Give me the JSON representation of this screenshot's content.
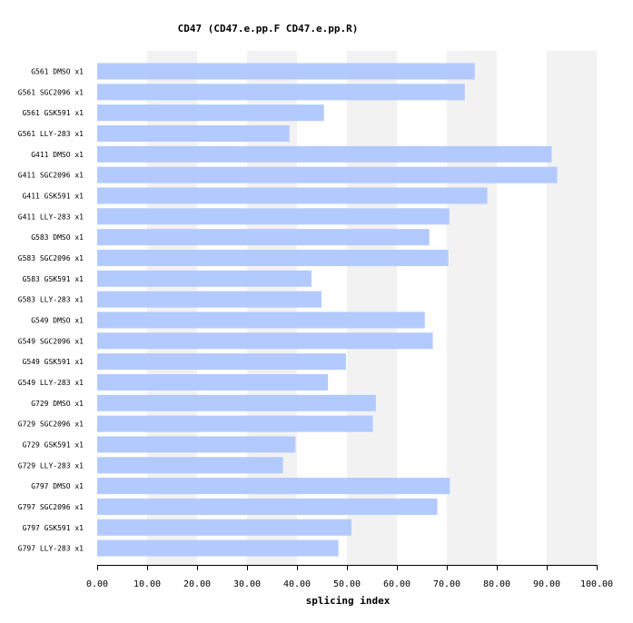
{
  "chart_data": {
    "type": "bar",
    "orientation": "horizontal",
    "title": "CD47 (CD47.e.pp.F  CD47.e.pp.R)",
    "xlabel": "splicing index",
    "ylabel": "",
    "xlim": [
      0,
      100
    ],
    "x_ticks": [
      "0.00",
      "10.00",
      "20.00",
      "30.00",
      "40.00",
      "50.00",
      "60.00",
      "70.00",
      "80.00",
      "90.00",
      "100.00"
    ],
    "grid": "alternating vertical bands",
    "categories": [
      "G561 DMSO x1",
      "G561 SGC2096 x1",
      "G561 GSK591 x1",
      "G561 LLY-283 x1",
      "G411 DMSO x1",
      "G411 SGC2096 x1",
      "G411 GSK591 x1",
      "G411 LLY-283 x1",
      "G583 DMSO x1",
      "G583 SGC2096 x1",
      "G583 GSK591 x1",
      "G583 LLY-283 x1",
      "G549 DMSO x1",
      "G549 SGC2096 x1",
      "G549 GSK591 x1",
      "G549 LLY-283 x1",
      "G729 DMSO x1",
      "G729 SGC2096 x1",
      "G729 GSK591 x1",
      "G729 LLY-283 x1",
      "G797 DMSO x1",
      "G797 SGC2096 x1",
      "G797 GSK591 x1",
      "G797 LLY-283 x1"
    ],
    "values": [
      75.6,
      73.6,
      45.4,
      38.5,
      91.0,
      92.1,
      78.1,
      70.5,
      66.5,
      70.3,
      42.9,
      44.9,
      65.6,
      67.2,
      49.8,
      46.2,
      55.8,
      55.2,
      39.7,
      37.2,
      70.6,
      68.1,
      50.9,
      48.3
    ],
    "bar_color": "#b3caff",
    "band_color": "#f2f2f2"
  }
}
